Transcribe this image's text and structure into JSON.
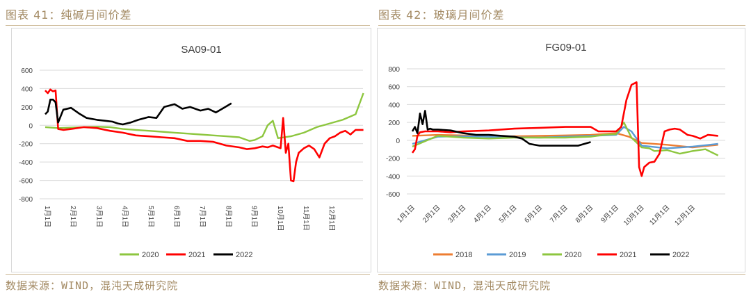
{
  "left": {
    "caption": "图表 41：纯碱月间价差",
    "source": "数据来源：WIND，混沌天成研究院"
  },
  "right": {
    "caption": "图表 42：玻璃月间价差",
    "source": "数据来源：WIND，混沌天成研究院"
  },
  "chart_data": [
    {
      "type": "line",
      "title": "SA09-01",
      "ylim": [
        -800,
        600
      ],
      "yticks": [
        600,
        400,
        200,
        0,
        -200,
        -400,
        -600,
        -800
      ],
      "categories": [
        "1月1日",
        "2月1日",
        "3月1日",
        "4月1日",
        "5月1日",
        "6月1日",
        "7月1日",
        "8月1日",
        "9月1日",
        "10月1日",
        "11月1日",
        "12月1日"
      ],
      "legend_position": "bottom",
      "grid": true,
      "series": [
        {
          "name": "2020",
          "color": "#8dc63f",
          "x": [
            0,
            0.5,
            1,
            1.5,
            2,
            2.5,
            3,
            3.5,
            4,
            4.5,
            5,
            5.5,
            6,
            6.5,
            7,
            7.5,
            7.7,
            7.9,
            8.1,
            8.4,
            8.6,
            8.8,
            9,
            9.5,
            10,
            10.5,
            11,
            11.5,
            12,
            12.3
          ],
          "values": [
            -20,
            -30,
            -25,
            -20,
            -15,
            -20,
            -40,
            -50,
            -60,
            -70,
            -80,
            -90,
            -100,
            -110,
            -120,
            -130,
            -150,
            -170,
            -160,
            -120,
            0,
            50,
            -140,
            -120,
            -80,
            -20,
            20,
            60,
            120,
            350
          ]
        },
        {
          "name": "2021",
          "color": "#ff0000",
          "x": [
            0,
            0.1,
            0.2,
            0.3,
            0.4,
            0.5,
            0.7,
            1,
            1.5,
            2,
            2.5,
            3,
            3.5,
            4,
            4.5,
            5,
            5.5,
            6,
            6.5,
            7,
            7.5,
            7.8,
            8.1,
            8.4,
            8.6,
            8.7,
            8.8,
            9,
            9.1,
            9.2,
            9.3,
            9.4,
            9.5,
            9.6,
            9.7,
            9.8,
            10,
            10.2,
            10.4,
            10.6,
            10.8,
            11,
            11.2,
            11.4,
            11.6,
            11.8,
            12,
            12.3
          ],
          "values": [
            380,
            350,
            390,
            370,
            380,
            -40,
            -50,
            -40,
            -20,
            -30,
            -60,
            -80,
            -110,
            -120,
            -130,
            -140,
            -170,
            -170,
            -180,
            -220,
            -240,
            -260,
            -250,
            -230,
            -240,
            -230,
            -220,
            -240,
            -250,
            80,
            -300,
            -200,
            -600,
            -610,
            -400,
            -300,
            -250,
            -220,
            -260,
            -350,
            -200,
            -140,
            -120,
            -80,
            -60,
            -100,
            -50,
            -50
          ]
        },
        {
          "name": "2022",
          "color": "#000000",
          "x": [
            0,
            0.1,
            0.2,
            0.3,
            0.4,
            0.5,
            0.7,
            1,
            1.3,
            1.6,
            2,
            2.3,
            2.6,
            2.8,
            3,
            3.3,
            3.6,
            4,
            4.3,
            4.6,
            5,
            5.3,
            5.6,
            6,
            6.3,
            6.6,
            6.9,
            7.2
          ],
          "values": [
            120,
            150,
            280,
            280,
            250,
            30,
            170,
            190,
            130,
            80,
            60,
            50,
            40,
            20,
            10,
            30,
            60,
            90,
            80,
            200,
            230,
            180,
            200,
            160,
            180,
            140,
            190,
            240
          ]
        }
      ]
    },
    {
      "type": "line",
      "title": "FG09-01",
      "ylim": [
        -600,
        800
      ],
      "yticks": [
        800,
        600,
        400,
        200,
        0,
        -200,
        -400,
        -600
      ],
      "categories": [
        "1月1日",
        "2月1日",
        "3月1日",
        "4月1日",
        "5月1日",
        "6月1日",
        "7月1日",
        "8月1日",
        "9月1日",
        "10月1日",
        "11月1日",
        "12月1日"
      ],
      "legend_position": "bottom",
      "grid": true,
      "series": [
        {
          "name": "2018",
          "color": "#ed7d31",
          "x": [
            0,
            1,
            2,
            3,
            4,
            5,
            6,
            7,
            8,
            8.5,
            9,
            10,
            11,
            12
          ],
          "values": [
            50,
            60,
            55,
            40,
            45,
            50,
            55,
            60,
            80,
            40,
            -30,
            -50,
            -80,
            -50
          ]
        },
        {
          "name": "2019",
          "color": "#5b9bd5",
          "x": [
            0,
            1,
            2,
            3,
            4,
            5,
            6,
            7,
            8,
            8.3,
            8.6,
            9,
            10,
            11,
            12
          ],
          "values": [
            -40,
            40,
            45,
            40,
            35,
            30,
            40,
            50,
            60,
            150,
            100,
            -60,
            -90,
            -70,
            -40
          ]
        },
        {
          "name": "2020",
          "color": "#8dc63f",
          "x": [
            0,
            1,
            2,
            3,
            4,
            5,
            6,
            7,
            7.5,
            8,
            8.3,
            8.6,
            9,
            9.3,
            9.5,
            10,
            10.5,
            11,
            11.5,
            12
          ],
          "values": [
            -70,
            50,
            30,
            20,
            30,
            30,
            30,
            40,
            60,
            70,
            200,
            30,
            -80,
            -90,
            -120,
            -110,
            -150,
            -120,
            -100,
            -170
          ]
        },
        {
          "name": "2021",
          "color": "#ff0000",
          "x": [
            0,
            0.1,
            0.2,
            0.3,
            0.5,
            1,
            1.5,
            2,
            3,
            4,
            5,
            6,
            7,
            7.3,
            7.6,
            8,
            8.2,
            8.4,
            8.6,
            8.8,
            8.9,
            9,
            9.1,
            9.3,
            9.5,
            9.7,
            9.9,
            10.1,
            10.3,
            10.5,
            10.8,
            11,
            11.3,
            11.6,
            12
          ],
          "values": [
            -140,
            -100,
            50,
            90,
            100,
            100,
            90,
            100,
            110,
            130,
            140,
            150,
            150,
            100,
            100,
            100,
            150,
            450,
            620,
            650,
            -300,
            -400,
            -300,
            -250,
            -240,
            -150,
            100,
            120,
            130,
            120,
            60,
            50,
            20,
            60,
            50
          ]
        },
        {
          "name": "2022",
          "color": "#000000",
          "x": [
            0,
            0.1,
            0.2,
            0.3,
            0.4,
            0.5,
            0.6,
            0.7,
            0.8,
            1,
            1.5,
            2,
            2.5,
            3,
            3.5,
            4,
            4.3,
            4.6,
            5,
            5.5,
            6,
            6.5,
            7
          ],
          "values": [
            100,
            150,
            80,
            300,
            180,
            330,
            120,
            130,
            120,
            120,
            110,
            80,
            60,
            60,
            50,
            40,
            20,
            -40,
            -60,
            -60,
            -60,
            -60,
            -20
          ]
        }
      ]
    }
  ]
}
